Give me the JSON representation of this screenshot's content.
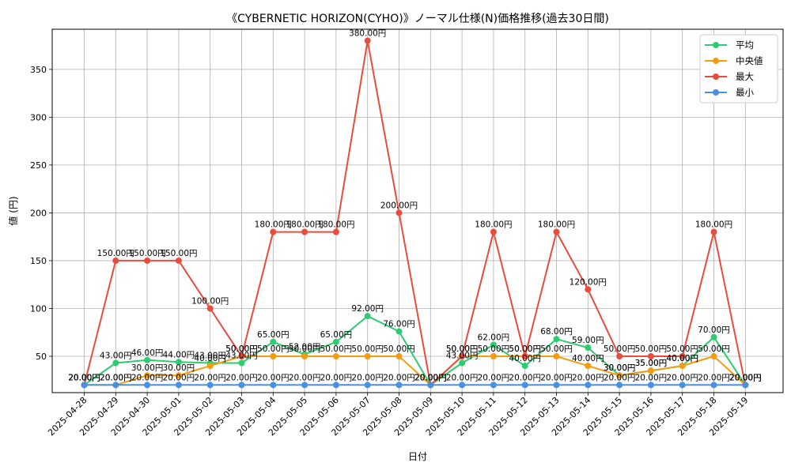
{
  "chart_data": {
    "type": "line",
    "title": "《CYBERNETIC HORIZON(CYHO)》ノーマル仕様(N)価格推移(過去30日間)",
    "xlabel": "日付",
    "ylabel": "値 (円)",
    "ylim": [
      12,
      392
    ],
    "yticks": [
      50,
      100,
      150,
      200,
      250,
      300,
      350
    ],
    "grid": true,
    "legend_position": "top-right",
    "label_suffix": "円",
    "categories": [
      "2025-04-28",
      "2025-04-29",
      "2025-04-30",
      "2025-05-01",
      "2025-05-02",
      "2025-05-03",
      "2025-05-04",
      "2025-05-05",
      "2025-05-06",
      "2025-05-07",
      "2025-05-08",
      "2025-05-09",
      "2025-05-10",
      "2025-05-11",
      "2025-05-12",
      "2025-05-13",
      "2025-05-14",
      "2025-05-15",
      "2025-05-16",
      "2025-05-17",
      "2025-05-18",
      "2025-05-19"
    ],
    "series": [
      {
        "name": "平均",
        "color": "#2ecc71",
        "values": [
          20,
          43,
          46,
          44,
          43,
          43,
          65,
          52,
          65,
          92,
          76,
          20,
          43,
          62,
          40,
          68,
          59,
          30,
          35,
          40,
          70,
          20
        ]
      },
      {
        "name": "中央値",
        "color": "#f39c12",
        "values": [
          20,
          20,
          30,
          30,
          40,
          50,
          50,
          50,
          50,
          50,
          50,
          20,
          50,
          50,
          50,
          50,
          40,
          30,
          35,
          40,
          50,
          20
        ]
      },
      {
        "name": "最大",
        "color": "#e74c3c",
        "values": [
          20,
          150,
          150,
          150,
          100,
          50,
          180,
          180,
          180,
          380,
          200,
          20,
          50,
          180,
          50,
          180,
          120,
          50,
          50,
          50,
          180,
          20
        ]
      },
      {
        "name": "最小",
        "color": "#4a90e2",
        "values": [
          20,
          20,
          20,
          20,
          20,
          20,
          20,
          20,
          20,
          20,
          20,
          20,
          20,
          20,
          20,
          20,
          20,
          20,
          20,
          20,
          20,
          20
        ]
      }
    ]
  }
}
